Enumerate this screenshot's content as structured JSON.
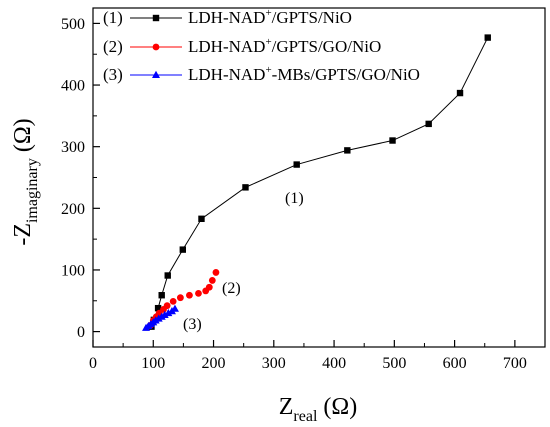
{
  "chart_data": {
    "type": "scatter",
    "xlabel": {
      "main": "Z",
      "sub": "real",
      "unit": " (Ω)"
    },
    "ylabel": {
      "main": "-Z",
      "sub": "imaginary",
      "unit": " (Ω)"
    },
    "xlim": [
      0,
      750
    ],
    "ylim": [
      -25,
      525
    ],
    "x_ticks": [
      0,
      100,
      200,
      300,
      400,
      500,
      600,
      700
    ],
    "y_ticks": [
      0,
      100,
      200,
      300,
      400,
      500
    ],
    "grid": false,
    "legend_position": "top-left",
    "series": [
      {
        "legend_prefix": "(1)",
        "name_parts": [
          "LDH-NAD",
          "+",
          "/GPTS/NiO"
        ],
        "marker": "square",
        "color": "#000000",
        "line": true,
        "annotation": "(1)",
        "x": [
          97,
          101,
          108,
          114,
          124,
          149,
          180,
          253,
          338,
          422,
          497,
          557,
          609,
          655
        ],
        "y": [
          8,
          19,
          38,
          59,
          91,
          133,
          183,
          234,
          271,
          294,
          310,
          337,
          387,
          477
        ]
      },
      {
        "legend_prefix": "(2)",
        "name_parts": [
          "LDH-NAD",
          "+",
          "/GPTS/GO/NiO"
        ],
        "marker": "circle",
        "color": "#ff0000",
        "line": false,
        "annotation": "(2)",
        "x": [
          95,
          100,
          105,
          110,
          117,
          123,
          133,
          145,
          160,
          175,
          187,
          193,
          198,
          204
        ],
        "y": [
          10,
          18,
          24,
          30,
          36,
          42,
          49,
          55,
          59,
          62,
          66,
          72,
          83,
          96
        ]
      },
      {
        "legend_prefix": "(3)",
        "name_parts": [
          "LDH-NAD",
          "+",
          "-MBs/GPTS/GO/NiO"
        ],
        "marker": "triangle",
        "color": "#0000ff",
        "line": false,
        "annotation": "(3)",
        "x": [
          88,
          92,
          96,
          100,
          104,
          109,
          114,
          119,
          125,
          131,
          136
        ],
        "y": [
          6,
          9,
          12,
          15,
          18,
          21,
          24,
          27,
          30,
          33,
          37
        ]
      }
    ]
  }
}
